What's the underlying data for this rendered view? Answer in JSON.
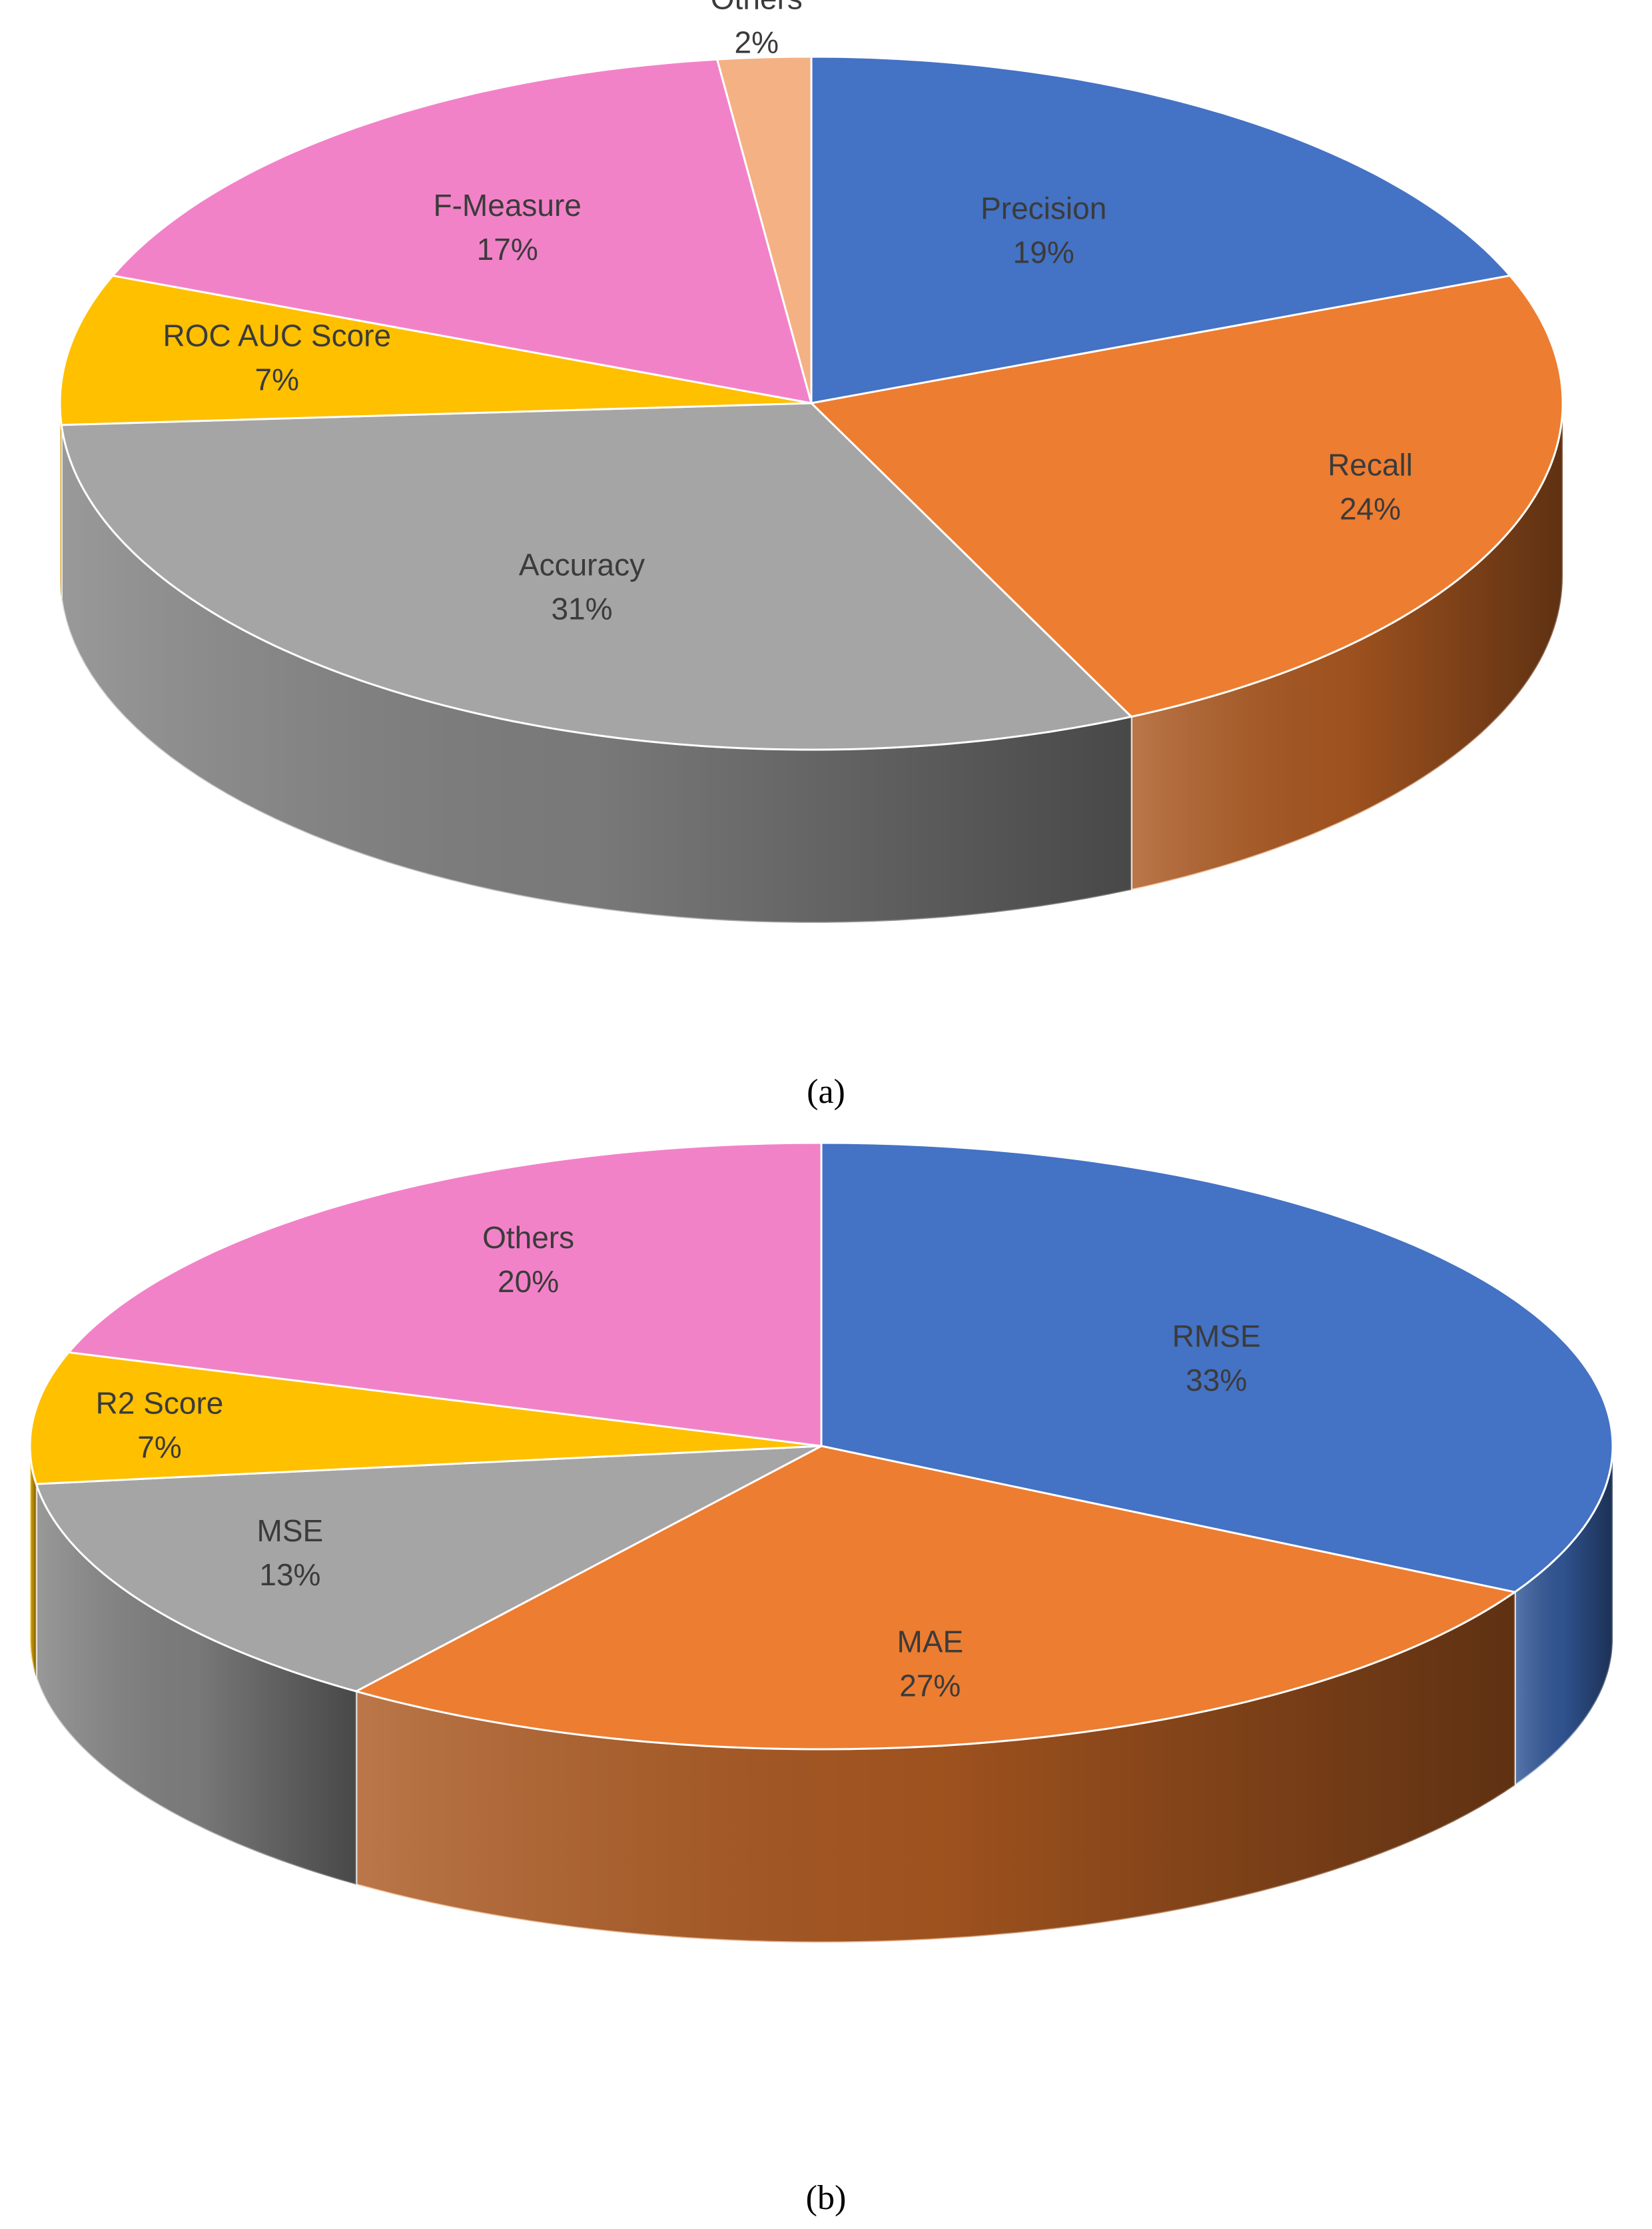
{
  "chart_data": [
    {
      "type": "pie",
      "style": "3d",
      "caption": "(a)",
      "slices": [
        {
          "label": "Precision",
          "value": 19,
          "text": "19%",
          "color": "#4472C4",
          "side": "#1f3864"
        },
        {
          "label": "Recall",
          "value": 24,
          "text": "24%",
          "color": "#ED7D31",
          "side": "#5e2e0f"
        },
        {
          "label": "Accuracy",
          "value": 31,
          "text": "31%",
          "color": "#A5A5A5",
          "side": "#5a5a5a"
        },
        {
          "label": "ROC AUC Score",
          "value": 7,
          "text": "7%",
          "color": "#FFC000",
          "side": "#7f6000"
        },
        {
          "label": "F-Measure",
          "value": 17,
          "text": "17%",
          "color": "#F282C8",
          "side": "#7a3a62"
        },
        {
          "label": "Others",
          "value": 2,
          "text": "2%",
          "color": "#F4B183",
          "side": "#8a5a3a"
        }
      ]
    },
    {
      "type": "pie",
      "style": "3d",
      "caption": "(b)",
      "slices": [
        {
          "label": "RMSE",
          "value": 33,
          "text": "33%",
          "color": "#4472C4",
          "side": "#1f3864"
        },
        {
          "label": "MAE",
          "value": 27,
          "text": "27%",
          "color": "#ED7D31",
          "side": "#5e2e0f"
        },
        {
          "label": "MSE",
          "value": 13,
          "text": "13%",
          "color": "#A5A5A5",
          "side": "#5a5a5a"
        },
        {
          "label": "R2 Score",
          "value": 7,
          "text": "7%",
          "color": "#FFC000",
          "side": "#7f6000"
        },
        {
          "label": "Others",
          "value": 20,
          "text": "20%",
          "color": "#F282C8",
          "side": "#7a3a62"
        }
      ]
    }
  ]
}
